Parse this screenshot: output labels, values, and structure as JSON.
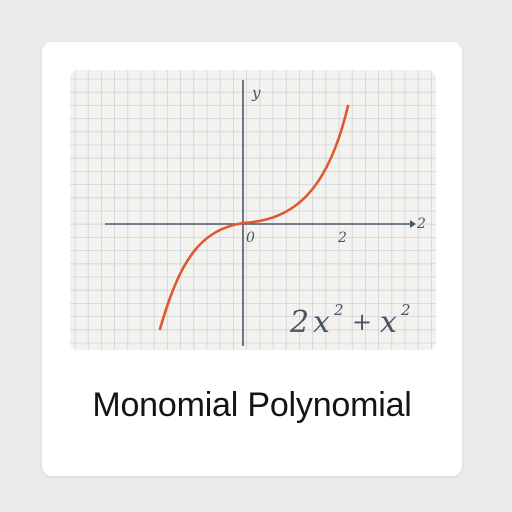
{
  "card": {
    "title": "Monomial Polynomial"
  },
  "graph": {
    "y_axis_label": "y",
    "x_axis_end_label": "2",
    "origin_label": "0",
    "x_tick_label": "2",
    "equation": {
      "coef": "2",
      "var1": "x",
      "exp1": "2",
      "op": "+",
      "var2": "x",
      "exp2": "2"
    }
  },
  "colors": {
    "curve": "#e0582f",
    "axis": "#4d5868",
    "grid": "#cdd3dd",
    "panel": "#f3f2ef"
  },
  "icons": []
}
